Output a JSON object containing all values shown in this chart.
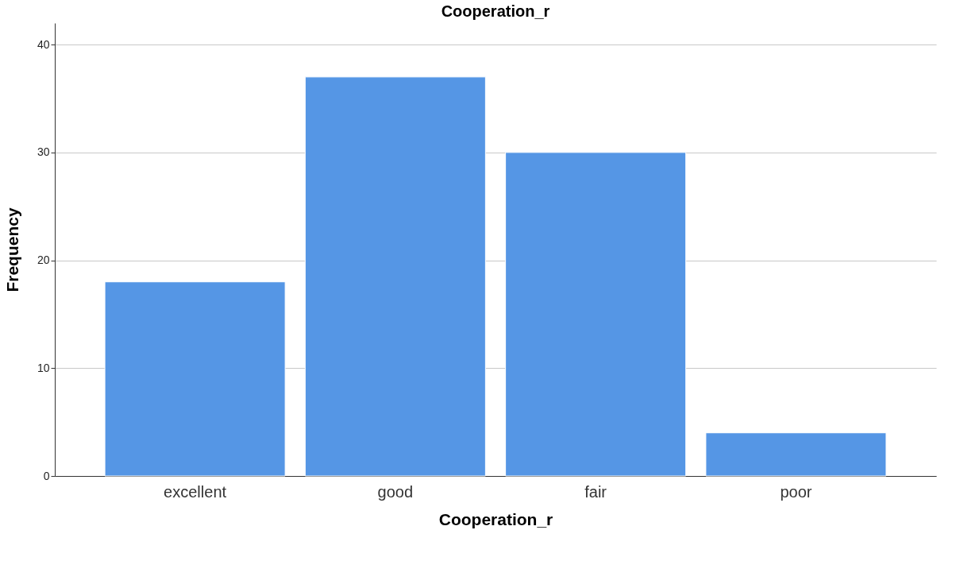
{
  "chart_data": {
    "type": "bar",
    "title": "Cooperation_r",
    "xlabel": "Cooperation_r",
    "ylabel": "Frequency",
    "categories": [
      "excellent",
      "good",
      "fair",
      "poor"
    ],
    "values": [
      18,
      37,
      30,
      4
    ],
    "color": "#5596e5",
    "ylim": [
      0,
      42
    ],
    "yticks": [
      0,
      10,
      20,
      30,
      40
    ],
    "grid": "y"
  }
}
